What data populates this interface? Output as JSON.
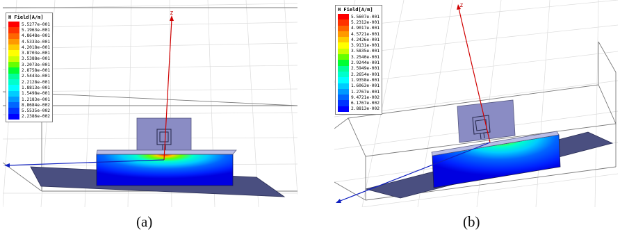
{
  "figure": {
    "panels": [
      {
        "caption": "(a)",
        "axis_label": "z",
        "legend": {
          "title": "H Field[A/m]",
          "entries": [
            {
              "value": "5.5277e-001",
              "color": "#ff0000"
            },
            {
              "value": "5.1963e-001",
              "color": "#ff3300"
            },
            {
              "value": "4.8648e-001",
              "color": "#ff6600"
            },
            {
              "value": "4.5333e-001",
              "color": "#ff9900"
            },
            {
              "value": "4.2018e-001",
              "color": "#ffcc00"
            },
            {
              "value": "3.8703e-001",
              "color": "#ffff00"
            },
            {
              "value": "3.5388e-001",
              "color": "#ccff00"
            },
            {
              "value": "3.2073e-001",
              "color": "#66ff00"
            },
            {
              "value": "2.8758e-001",
              "color": "#00ff33"
            },
            {
              "value": "2.5443e-001",
              "color": "#00ff99"
            },
            {
              "value": "2.2128e-001",
              "color": "#00ffcc"
            },
            {
              "value": "1.8813e-001",
              "color": "#00ffff"
            },
            {
              "value": "1.5498e-001",
              "color": "#00ccff"
            },
            {
              "value": "1.2183e-001",
              "color": "#0099ff"
            },
            {
              "value": "8.8684e-002",
              "color": "#0066ff"
            },
            {
              "value": "5.5535e-002",
              "color": "#0033ff"
            },
            {
              "value": "2.2386e-002",
              "color": "#0000ff"
            }
          ]
        }
      },
      {
        "caption": "(b)",
        "axis_label": "z",
        "legend": {
          "title": "H Field[A/m]",
          "entries": [
            {
              "value": "5.5607e-001",
              "color": "#ff0000"
            },
            {
              "value": "5.2312e-001",
              "color": "#ff3300"
            },
            {
              "value": "4.9017e-001",
              "color": "#ff6600"
            },
            {
              "value": "4.5721e-001",
              "color": "#ff9900"
            },
            {
              "value": "4.2426e-001",
              "color": "#ffcc00"
            },
            {
              "value": "3.9131e-001",
              "color": "#ffff00"
            },
            {
              "value": "3.5835e-001",
              "color": "#ccff00"
            },
            {
              "value": "3.2540e-001",
              "color": "#66ff00"
            },
            {
              "value": "2.9244e-001",
              "color": "#00ff33"
            },
            {
              "value": "2.5949e-001",
              "color": "#00ff99"
            },
            {
              "value": "2.2654e-001",
              "color": "#00ffcc"
            },
            {
              "value": "1.9358e-001",
              "color": "#00ffff"
            },
            {
              "value": "1.6063e-001",
              "color": "#00ccff"
            },
            {
              "value": "1.2767e-001",
              "color": "#0099ff"
            },
            {
              "value": "9.4721e-002",
              "color": "#0066ff"
            },
            {
              "value": "6.1767e-002",
              "color": "#0033ff"
            },
            {
              "value": "2.8813e-002",
              "color": "#0000ff"
            }
          ]
        }
      }
    ]
  }
}
